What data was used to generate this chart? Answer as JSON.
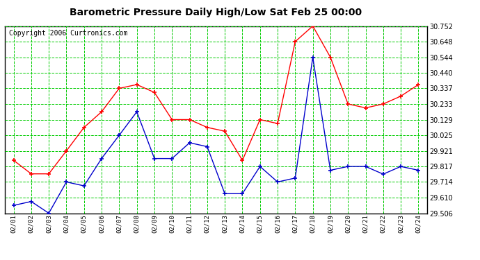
{
  "title": "Barometric Pressure Daily High/Low Sat Feb 25 00:00",
  "copyright": "Copyright 2006 Curtronics.com",
  "dates": [
    "02/01",
    "02/02",
    "02/03",
    "02/04",
    "02/05",
    "02/06",
    "02/07",
    "02/08",
    "02/09",
    "02/10",
    "02/11",
    "02/12",
    "02/13",
    "02/14",
    "02/15",
    "02/16",
    "02/17",
    "02/18",
    "02/19",
    "02/20",
    "02/21",
    "02/22",
    "02/23",
    "02/24"
  ],
  "high_values": [
    29.858,
    29.768,
    29.768,
    29.921,
    30.077,
    30.181,
    30.337,
    30.362,
    30.31,
    30.129,
    30.129,
    30.077,
    30.052,
    29.858,
    30.129,
    30.103,
    30.648,
    30.752,
    30.544,
    30.233,
    30.207,
    30.233,
    30.285,
    30.362
  ],
  "low_values": [
    29.558,
    29.584,
    29.506,
    29.714,
    29.688,
    29.87,
    30.025,
    30.181,
    29.87,
    29.87,
    29.975,
    29.949,
    29.636,
    29.636,
    29.817,
    29.714,
    29.74,
    30.544,
    29.792,
    29.817,
    29.817,
    29.766,
    29.817,
    29.792
  ],
  "high_color": "#ff0000",
  "low_color": "#0000cc",
  "bg_color": "#ffffff",
  "plot_bg_color": "#ffffff",
  "grid_color": "#00cc00",
  "gray_grid_color": "#aaaaaa",
  "title_fontsize": 10,
  "copyright_fontsize": 7,
  "ymin": 29.506,
  "ymax": 30.752,
  "yticks": [
    29.506,
    29.61,
    29.714,
    29.817,
    29.921,
    30.025,
    30.129,
    30.233,
    30.337,
    30.44,
    30.544,
    30.648,
    30.752
  ],
  "gray_vlines": [
    3,
    6,
    9,
    12,
    15,
    18,
    21
  ]
}
